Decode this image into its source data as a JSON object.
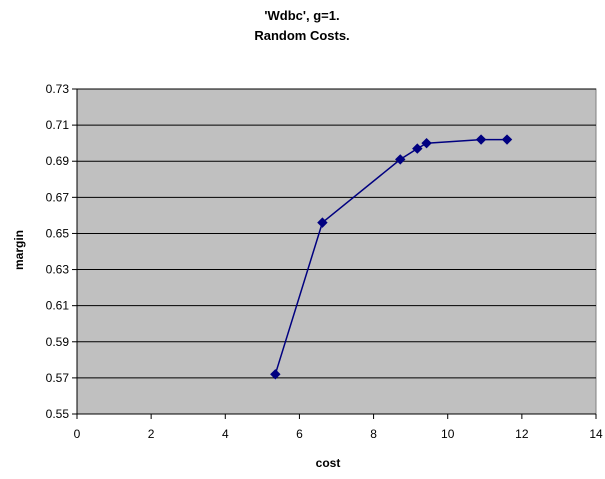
{
  "chart_data": {
    "type": "line",
    "title": "'Wdbc', g=1.",
    "subtitle": "Random Costs.",
    "xlabel": "cost",
    "ylabel": "margin",
    "xlim": [
      0,
      14
    ],
    "ylim": [
      0.55,
      0.73
    ],
    "x_ticks": [
      "0",
      "2",
      "4",
      "6",
      "8",
      "10",
      "12",
      "14"
    ],
    "y_ticks": [
      "0.55",
      "0.57",
      "0.59",
      "0.61",
      "0.63",
      "0.65",
      "0.67",
      "0.69",
      "0.71",
      "0.73"
    ],
    "grid": true,
    "legend": "none",
    "series": [
      {
        "x": [
          5.35,
          6.62,
          8.72,
          9.18,
          9.43,
          10.9,
          11.6
        ],
        "y": [
          0.572,
          0.656,
          0.691,
          0.697,
          0.7,
          0.702,
          0.702
        ],
        "marker": "diamond"
      }
    ],
    "colors": {
      "plot_background": "#c0c0c0",
      "line": "#000080",
      "grid": "#000000"
    }
  }
}
